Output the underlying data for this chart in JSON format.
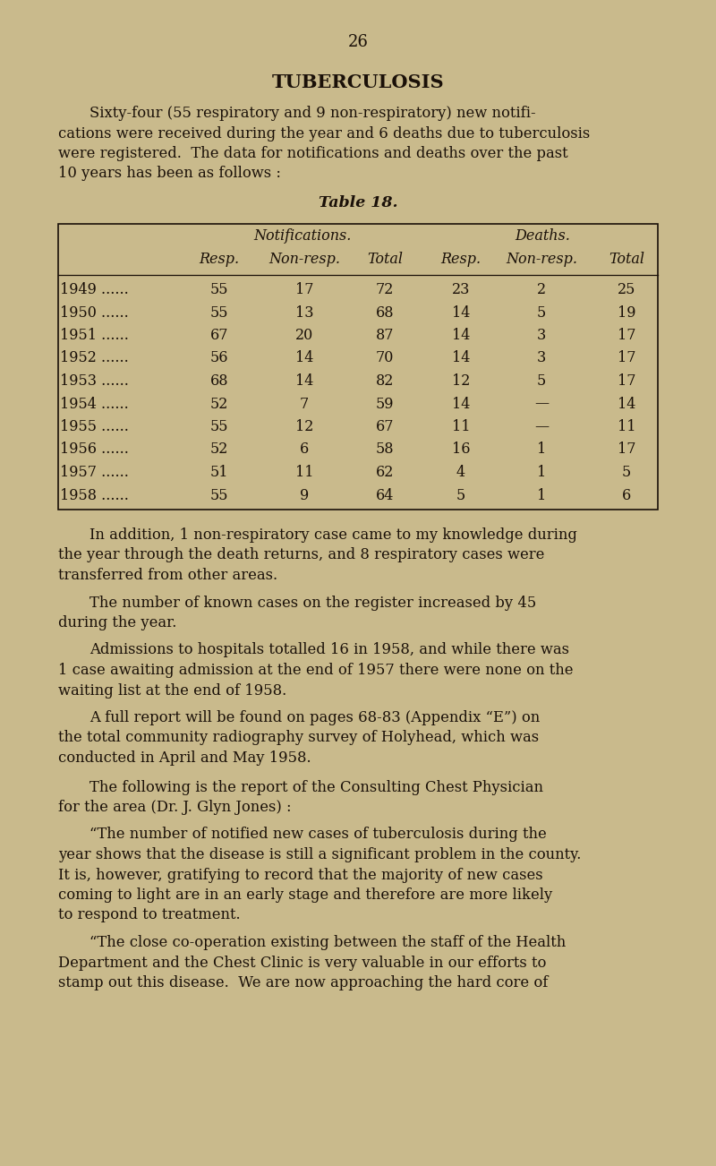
{
  "bg_color": "#c9ba8c",
  "text_color": "#1a1008",
  "page_number": "26",
  "title": "TUBERCULOSIS",
  "table_title": "Table 18.",
  "table_data": [
    [
      "1949 ......",
      "55",
      "17",
      "72",
      "23",
      "2",
      "25"
    ],
    [
      "1950 ......",
      "55",
      "13",
      "68",
      "14",
      "5",
      "19"
    ],
    [
      "1951 ......",
      "67",
      "20",
      "87",
      "14",
      "3",
      "17"
    ],
    [
      "1952 ......",
      "56",
      "14",
      "70",
      "14",
      "3",
      "17"
    ],
    [
      "1953 ......",
      "68",
      "14",
      "82",
      "12",
      "5",
      "17"
    ],
    [
      "1954 ......",
      "52",
      "7",
      "59",
      "14",
      "—",
      "14"
    ],
    [
      "1955 ......",
      "55",
      "12",
      "67",
      "11",
      "—",
      "11"
    ],
    [
      "1956 ......",
      "52",
      "6",
      "58",
      "16",
      "1",
      "17"
    ],
    [
      "1957 ......",
      "51",
      "11",
      "62",
      "4",
      "1",
      "5"
    ],
    [
      "1958 ......",
      "55",
      "9",
      "64",
      "5",
      "1",
      "6"
    ]
  ],
  "lines_intro": [
    "Sixty-four (55 respiratory and 9 non-respiratory) new notifi-",
    "cations were received during the year and 6 deaths due to tuberculosis",
    "were registered.  The data for notifications and deaths over the past",
    "10 years has been as follows :"
  ],
  "lines_p1": [
    "In addition, 1 non-respiratory case came to my knowledge during",
    "the year through the death returns, and 8 respiratory cases were",
    "transferred from other areas."
  ],
  "lines_p2": [
    "The number of known cases on the register increased by 45",
    "during the year."
  ],
  "lines_p3": [
    "Admissions to hospitals totalled 16 in 1958, and while there was",
    "1 case awaiting admission at the end of 1957 there were none on the",
    "waiting list at the end of 1958."
  ],
  "lines_p4": [
    "A full report will be found on pages 68-83 (Appendix “E”) on",
    "the total community radiography survey of Holyhead, which was",
    "conducted in April and May 1958."
  ],
  "lines_p5": [
    "The following is the report of the Consulting Chest Physician",
    "for the area (Dr. J. Glyn Jones) :"
  ],
  "lines_q1": [
    "“The number of notified new cases of tuberculosis during the",
    "year shows that the disease is still a significant problem in the county.",
    "It is, however, gratifying to record that the majority of new cases",
    "coming to light are in an early stage and therefore are more likely",
    "to respond to treatment."
  ],
  "lines_q2": [
    "“The close co-operation existing between the staff of the Health",
    "Department and the Chest Clinic is very valuable in our efforts to",
    "stamp out this disease.  We are now approaching the hard core of"
  ],
  "font_size_page_num": 13,
  "font_size_title": 15,
  "font_size_body": 11.8,
  "font_size_table": 11.5,
  "font_size_table_title": 12.5,
  "fig_w": 8.0,
  "fig_h": 13.02,
  "dpi": 100
}
